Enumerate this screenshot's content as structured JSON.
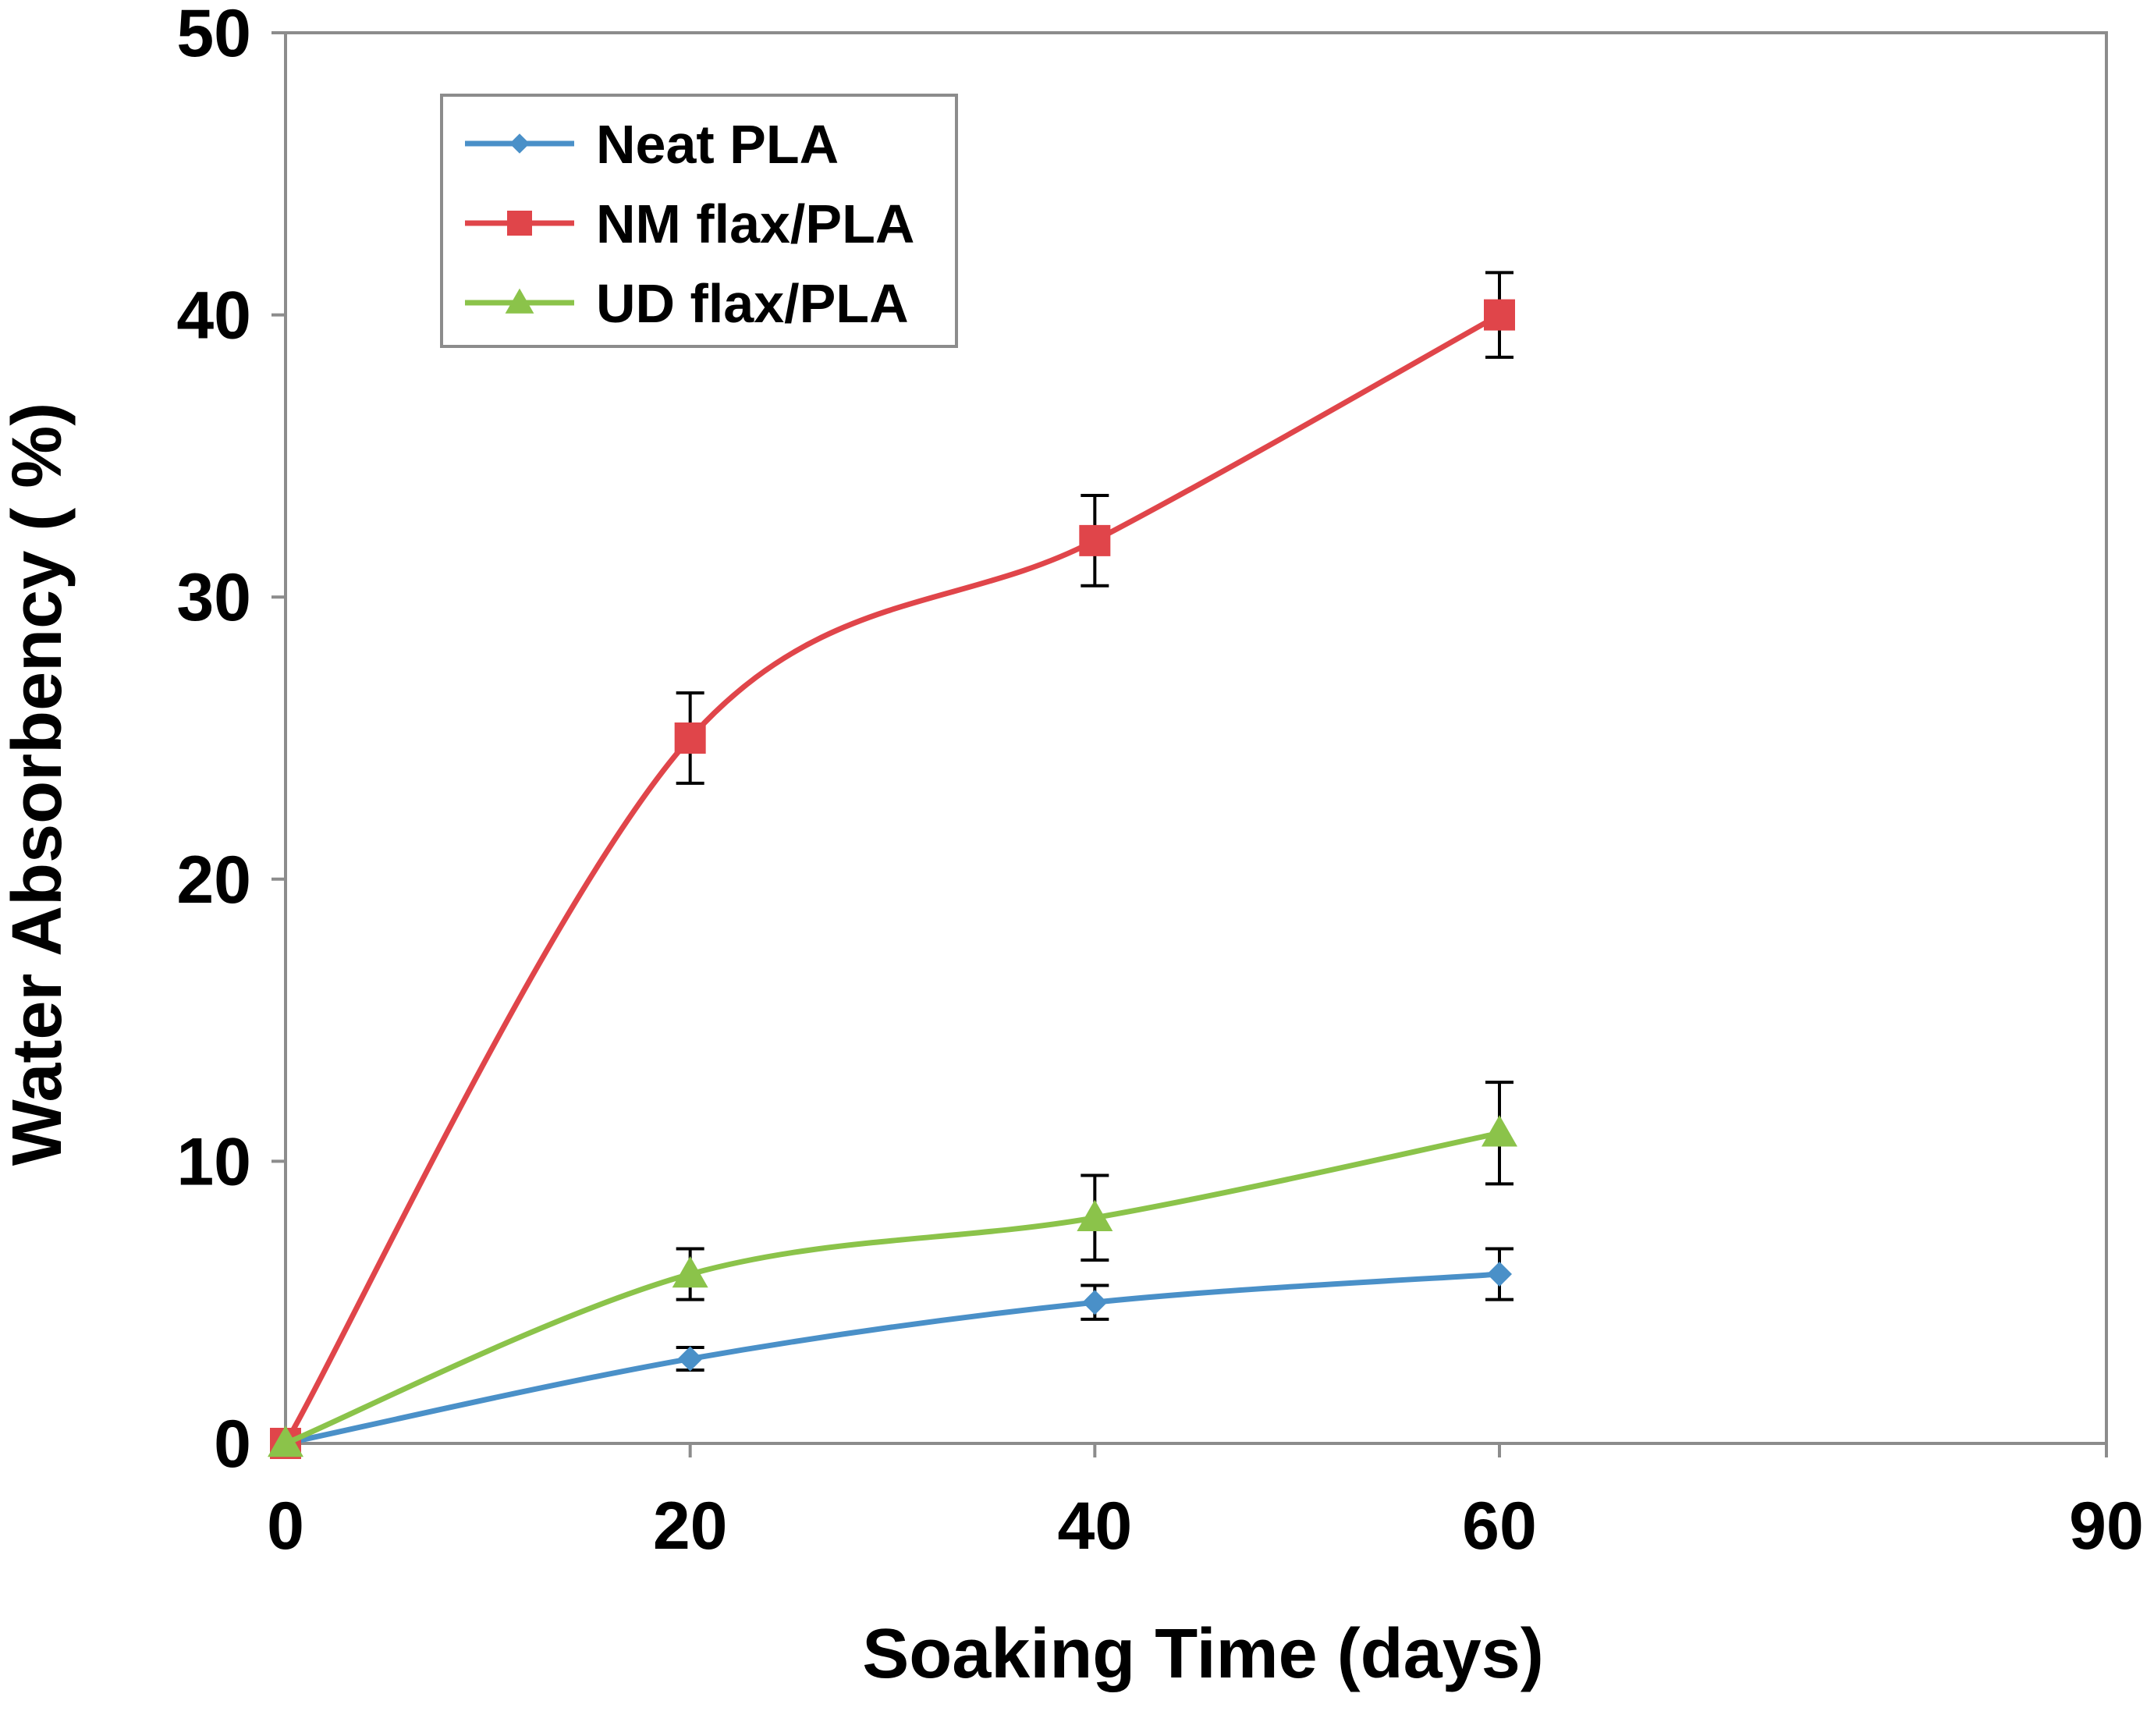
{
  "chart_data": {
    "type": "line",
    "title": "",
    "xlabel": "Soaking Time (days)",
    "ylabel": "Water Absorbency ( %)",
    "xlim": [
      0,
      90
    ],
    "ylim": [
      0,
      50
    ],
    "x_tick_values": [
      0,
      20,
      40,
      60,
      90
    ],
    "x_tick_labels": [
      "0",
      "20",
      "40",
      "60",
      "90"
    ],
    "y_tick_values": [
      0,
      10,
      20,
      30,
      40,
      50
    ],
    "y_tick_labels": [
      "0",
      "10",
      "20",
      "30",
      "40",
      "50"
    ],
    "grid": false,
    "legend_position": "top-left",
    "series": [
      {
        "name": "Neat PLA",
        "color": "#4a90c8",
        "marker": "diamond",
        "x": [
          0,
          20,
          40,
          60
        ],
        "y": [
          0,
          3,
          5,
          6
        ],
        "error": [
          0,
          0.4,
          0.6,
          0.9
        ]
      },
      {
        "name": "NM flax/PLA",
        "color": "#e0454a",
        "marker": "square",
        "x": [
          0,
          20,
          40,
          60
        ],
        "y": [
          0,
          25,
          32,
          40
        ],
        "error": [
          0,
          1.6,
          1.6,
          1.5
        ]
      },
      {
        "name": "UD flax/PLA",
        "color": "#8bc34a",
        "marker": "triangle",
        "x": [
          0,
          20,
          40,
          60
        ],
        "y": [
          0,
          6,
          8,
          11
        ],
        "error": [
          0,
          0.9,
          1.5,
          1.8
        ]
      }
    ]
  }
}
